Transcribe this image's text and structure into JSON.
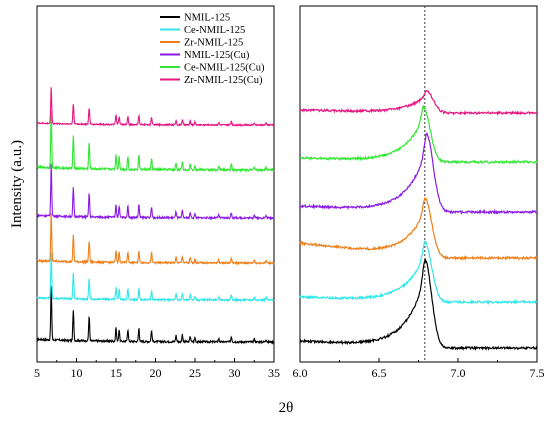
{
  "chart_data": [
    {
      "type": "line",
      "panel": "left",
      "ylabel": "Intensity (a.u.)",
      "xlabel": "2θ",
      "xlim": [
        5,
        35
      ],
      "xticks": [
        5,
        10,
        15,
        20,
        25,
        30,
        35
      ],
      "yticks_visible": false,
      "legend_position": "top-right",
      "series": [
        {
          "name": "NMIL-125",
          "color": "#000000",
          "offset": 0
        },
        {
          "name": "Ce-NMIL-125",
          "color": "#33e6e6",
          "offset": 1
        },
        {
          "name": "Zr-NMIL-125",
          "color": "#f07f1a",
          "offset": 2
        },
        {
          "name": "NMIL-125(Cu)",
          "color": "#8a1ae6",
          "offset": 3
        },
        {
          "name": "Ce-NMIL-125(Cu)",
          "color": "#33e633",
          "offset": 4
        },
        {
          "name": "Zr-NMIL-125(Cu)",
          "color": "#e6157f",
          "offset": 5
        }
      ],
      "peaks": [
        {
          "x": 6.8,
          "h": 1.0
        },
        {
          "x": 9.6,
          "h": 0.55
        },
        {
          "x": 11.6,
          "h": 0.45
        },
        {
          "x": 15.0,
          "h": 0.25
        },
        {
          "x": 15.4,
          "h": 0.22
        },
        {
          "x": 16.5,
          "h": 0.22
        },
        {
          "x": 17.9,
          "h": 0.25
        },
        {
          "x": 19.5,
          "h": 0.2
        },
        {
          "x": 22.6,
          "h": 0.12
        },
        {
          "x": 23.4,
          "h": 0.14
        },
        {
          "x": 24.4,
          "h": 0.1
        },
        {
          "x": 25.0,
          "h": 0.08
        },
        {
          "x": 28.0,
          "h": 0.06
        },
        {
          "x": 29.6,
          "h": 0.1
        },
        {
          "x": 32.5,
          "h": 0.06
        },
        {
          "x": 34.0,
          "h": 0.05
        }
      ]
    },
    {
      "type": "line",
      "panel": "right",
      "xlim": [
        6.0,
        7.5
      ],
      "xticks": [
        6.0,
        6.5,
        7.0,
        7.5
      ],
      "reference_line_x": 6.79,
      "yticks_visible": false,
      "series": [
        {
          "name": "NMIL-125",
          "color": "#000000",
          "peak_x": 6.79,
          "peak_h": 1.0,
          "offset": 0
        },
        {
          "name": "Ce-NMIL-125",
          "color": "#33e6e6",
          "peak_x": 6.79,
          "peak_h": 0.75,
          "offset": 1
        },
        {
          "name": "Zr-NMIL-125",
          "color": "#f07f1a",
          "peak_x": 6.79,
          "peak_h": 0.95,
          "offset": 2
        },
        {
          "name": "NMIL-125(Cu)",
          "color": "#8a1ae6",
          "peak_x": 6.8,
          "peak_h": 0.95,
          "offset": 3
        },
        {
          "name": "Ce-NMIL-125(Cu)",
          "color": "#33e633",
          "peak_x": 6.78,
          "peak_h": 0.65,
          "offset": 4
        },
        {
          "name": "Zr-NMIL-125(Cu)",
          "color": "#e6157f",
          "peak_x": 6.8,
          "peak_h": 0.25,
          "offset": 5
        }
      ]
    }
  ]
}
